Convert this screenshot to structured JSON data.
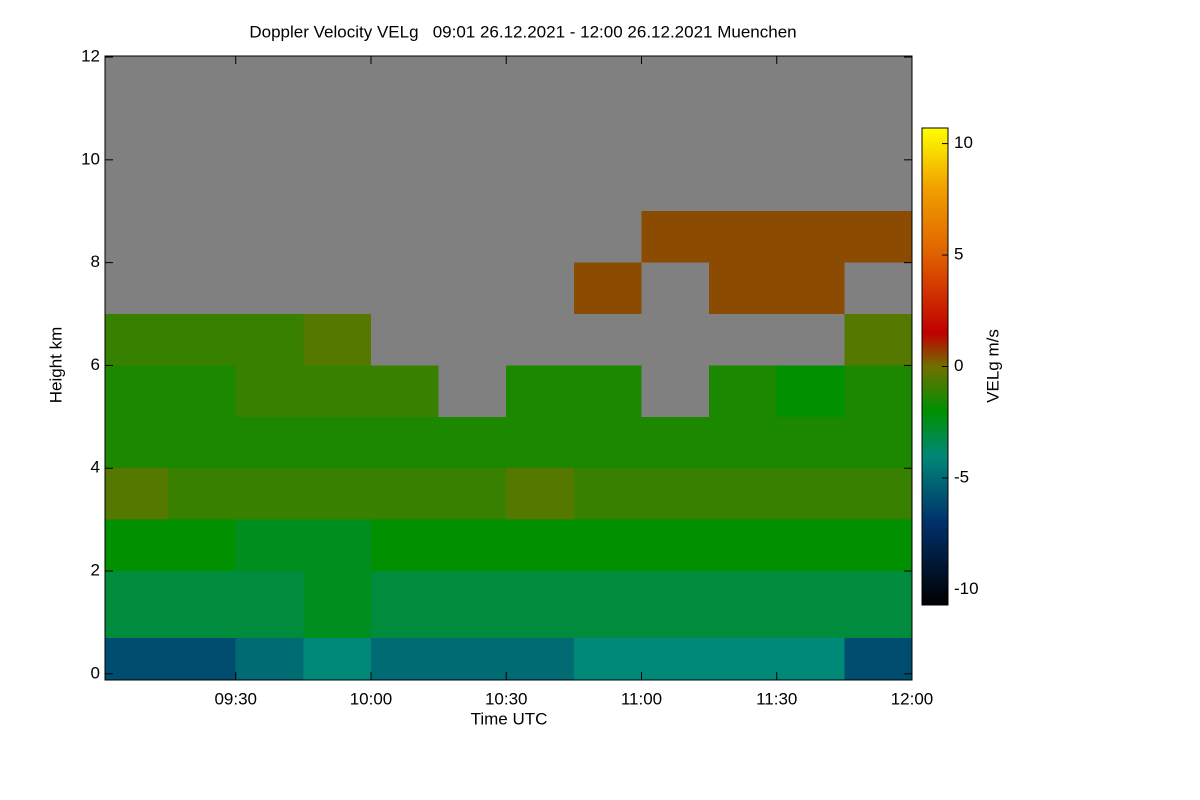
{
  "chart_data": {
    "type": "heatmap",
    "title": "Doppler Velocity VELg   09:01 26.12.2021 - 12:00 26.12.2021 Muenchen",
    "x_label": "Time UTC",
    "y_label": "Height km",
    "colorbar_label": "VELg m/s",
    "xbins": [
      9.0167,
      9.25,
      9.5,
      9.75,
      10.0,
      10.25,
      10.5,
      10.75,
      11.0,
      11.25,
      11.5,
      11.75,
      12.0
    ],
    "ybins": [
      -0.12,
      0.7,
      2,
      3,
      4,
      5,
      6,
      7,
      8,
      9,
      12.02
    ],
    "values": [
      [
        -6,
        -6,
        -5,
        -4,
        -5,
        -5,
        -5,
        -4,
        -4,
        -4,
        -4,
        -6
      ],
      [
        -3,
        -3,
        -3,
        -2.5,
        -3,
        -3,
        -3,
        -3,
        -3,
        -3,
        -3,
        -3
      ],
      [
        -2,
        -2,
        -2.5,
        -2.5,
        -2,
        -2,
        -2,
        -2,
        -2,
        -2,
        -2,
        -2
      ],
      [
        -0.5,
        -1,
        -1,
        -1,
        -1,
        -1,
        -0.5,
        -1,
        -1,
        -1,
        -1,
        -1
      ],
      [
        -1.5,
        -1.5,
        -1.5,
        -1.5,
        -1.5,
        -1.5,
        -1.5,
        -1.5,
        -1.5,
        -1.5,
        -1.5,
        -1.5
      ],
      [
        -1.5,
        -1.5,
        -1,
        -1,
        -1,
        null,
        -1.5,
        -1.5,
        null,
        -1.5,
        -2,
        -1.5
      ],
      [
        -1,
        -1,
        -1,
        -0.5,
        null,
        null,
        null,
        null,
        null,
        null,
        null,
        -0.5
      ],
      [
        null,
        null,
        null,
        null,
        null,
        null,
        null,
        0.5,
        null,
        0.5,
        0.5,
        null
      ],
      [
        null,
        null,
        null,
        null,
        null,
        null,
        null,
        null,
        0.5,
        0.5,
        0.5,
        0.5
      ],
      [
        null,
        null,
        null,
        null,
        null,
        null,
        null,
        null,
        null,
        null,
        null,
        null
      ]
    ],
    "xlim": [
      9.0167,
      12.0
    ],
    "ylim": [
      -0.12,
      12.02
    ],
    "xticks": [
      {
        "value": 9.5,
        "label": "09:30"
      },
      {
        "value": 10.0,
        "label": "10:00"
      },
      {
        "value": 10.5,
        "label": "10:30"
      },
      {
        "value": 11.0,
        "label": "11:00"
      },
      {
        "value": 11.5,
        "label": "11:30"
      },
      {
        "value": 12.0,
        "label": "12:00"
      }
    ],
    "yticks": [
      0,
      2,
      4,
      6,
      8,
      10,
      12
    ],
    "clim": [
      -10.7,
      10.7
    ],
    "cticks": [
      -10,
      -5,
      0,
      5,
      10
    ],
    "nan_color": "#808080",
    "colorscale": [
      {
        "value": -10.7,
        "color": "#000000"
      },
      {
        "value": -7,
        "color": "#00306a"
      },
      {
        "value": -4,
        "color": "#008878"
      },
      {
        "value": -2,
        "color": "#009000"
      },
      {
        "value": 0,
        "color": "#707000"
      },
      {
        "value": 1.5,
        "color": "#c00000"
      },
      {
        "value": 5,
        "color": "#e06000"
      },
      {
        "value": 8,
        "color": "#f0a000"
      },
      {
        "value": 10.7,
        "color": "#ffff00"
      }
    ]
  }
}
